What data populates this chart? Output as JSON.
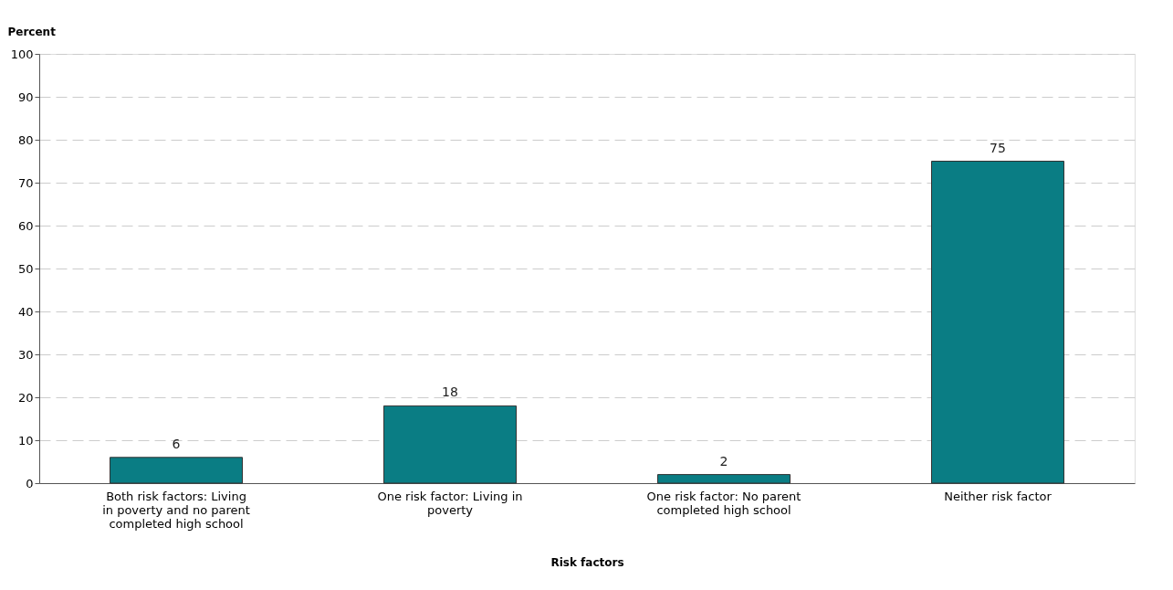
{
  "chart_data": {
    "type": "bar",
    "categories": [
      "Both risk factors: Living in poverty and no parent completed high school",
      "One risk factor: Living in poverty",
      "One risk factor: No parent completed high school",
      "Neither risk factor"
    ],
    "values": [
      6,
      18,
      2,
      75
    ],
    "color": "#0a7d84",
    "ylabel": "Percent",
    "xlabel": "Risk factors",
    "ylim": [
      0,
      100
    ],
    "yticks": [
      0,
      10,
      20,
      30,
      40,
      50,
      60,
      70,
      80,
      90,
      100
    ],
    "grid": "y",
    "data_labels": true
  }
}
